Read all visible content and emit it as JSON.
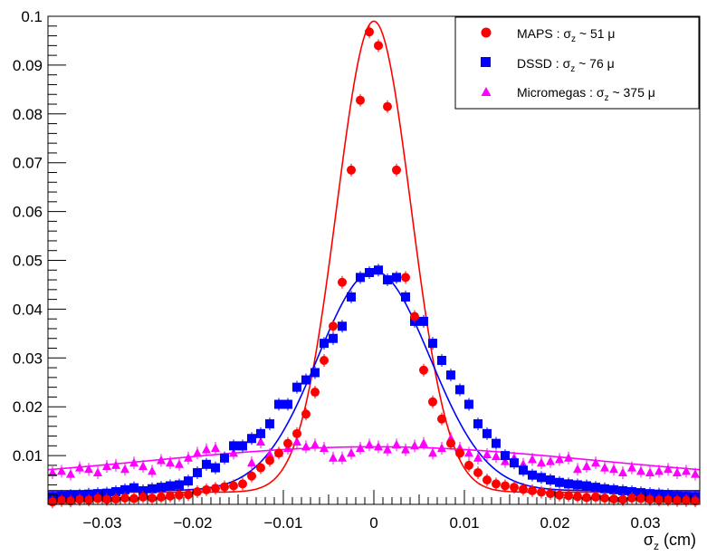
{
  "chart_data": {
    "type": "scatter",
    "title": "",
    "xlabel": "σz (cm)",
    "xlabel_main": "σ",
    "xlabel_sub": "z",
    "xlabel_unit": " (cm)",
    "ylabel": "",
    "xlim": [
      -0.036,
      0.036
    ],
    "ylim": [
      0,
      0.1
    ],
    "x_ticks": [
      -0.03,
      -0.02,
      -0.01,
      0,
      0.01,
      0.02,
      0.03
    ],
    "x_tick_labels": [
      "−0.03",
      "−0.02",
      "−0.01",
      "0",
      "0.01",
      "0.02",
      "0.03"
    ],
    "y_ticks": [
      0.01,
      0.02,
      0.03,
      0.04,
      0.05,
      0.06,
      0.07,
      0.08,
      0.09,
      0.1
    ],
    "y_tick_labels": [
      "0.01",
      "0.02",
      "0.03",
      "0.04",
      "0.05",
      "0.06",
      "0.07",
      "0.08",
      "0.09",
      "0.1"
    ],
    "grid": false,
    "legend_position": "top-right",
    "series": [
      {
        "name": "MAPS",
        "legend_text": "MAPS : σz ~ 51 μ",
        "legend_main": "MAPS : σ",
        "legend_sub": "z",
        "legend_tail": " ~ 51 μ",
        "marker": "circle",
        "color": "#ff0000",
        "fit": {
          "amp": 0.0965,
          "sigma": 0.0041,
          "offset": 0.0025
        },
        "x": [
          -0.0355,
          -0.0345,
          -0.0335,
          -0.0325,
          -0.0315,
          -0.0305,
          -0.0295,
          -0.0285,
          -0.0275,
          -0.0265,
          -0.0255,
          -0.0245,
          -0.0235,
          -0.0225,
          -0.0215,
          -0.0205,
          -0.0195,
          -0.0185,
          -0.0175,
          -0.0165,
          -0.0155,
          -0.0145,
          -0.0135,
          -0.0125,
          -0.0115,
          -0.0105,
          -0.0095,
          -0.0085,
          -0.0075,
          -0.0065,
          -0.0055,
          -0.0045,
          -0.0035,
          -0.0025,
          -0.0015,
          -0.0005,
          0.0005,
          0.0015,
          0.0025,
          0.0035,
          0.0045,
          0.0055,
          0.0065,
          0.0075,
          0.0085,
          0.0095,
          0.0105,
          0.0115,
          0.0125,
          0.0135,
          0.0145,
          0.0155,
          0.0165,
          0.0175,
          0.0185,
          0.0195,
          0.0205,
          0.0215,
          0.0225,
          0.0235,
          0.0245,
          0.0255,
          0.0265,
          0.0275,
          0.0285,
          0.0295,
          0.0305,
          0.0315,
          0.0325,
          0.0335,
          0.0345,
          0.0355
        ],
        "y": [
          0.0005,
          0.0008,
          0.0007,
          0.001,
          0.0009,
          0.0012,
          0.001,
          0.0011,
          0.0013,
          0.0012,
          0.0015,
          0.0013,
          0.0015,
          0.0017,
          0.0019,
          0.002,
          0.0026,
          0.003,
          0.0033,
          0.0036,
          0.0038,
          0.0042,
          0.0058,
          0.0075,
          0.009,
          0.0105,
          0.0125,
          0.0145,
          0.0185,
          0.023,
          0.0295,
          0.0365,
          0.0455,
          0.0685,
          0.0828,
          0.0968,
          0.094,
          0.0815,
          0.0685,
          0.0465,
          0.0385,
          0.0275,
          0.021,
          0.0175,
          0.0125,
          0.0105,
          0.008,
          0.0065,
          0.005,
          0.0042,
          0.0038,
          0.0035,
          0.0031,
          0.0028,
          0.0025,
          0.0022,
          0.0019,
          0.0018,
          0.0016,
          0.0014,
          0.0015,
          0.0013,
          0.0011,
          0.001,
          0.0013,
          0.0012,
          0.001,
          0.0009,
          0.0009,
          0.0008,
          0.0008,
          0.0007
        ]
      },
      {
        "name": "DSSD",
        "legend_text": "DSSD : σz ~ 76 μ",
        "legend_main": "DSSD : σ",
        "legend_sub": "z",
        "legend_tail": " ~ 76 μ",
        "marker": "square",
        "color": "#0000ff",
        "fit": {
          "amp": 0.045,
          "sigma": 0.0062,
          "offset": 0.0028
        },
        "x": [
          -0.0355,
          -0.0345,
          -0.0335,
          -0.0325,
          -0.0315,
          -0.0305,
          -0.0295,
          -0.0285,
          -0.0275,
          -0.0265,
          -0.0255,
          -0.0245,
          -0.0235,
          -0.0225,
          -0.0215,
          -0.0205,
          -0.0195,
          -0.0185,
          -0.0175,
          -0.0165,
          -0.0155,
          -0.0145,
          -0.0135,
          -0.0125,
          -0.0115,
          -0.0105,
          -0.0095,
          -0.0085,
          -0.0075,
          -0.0065,
          -0.0055,
          -0.0045,
          -0.0035,
          -0.0025,
          -0.0015,
          -0.0005,
          0.0005,
          0.0015,
          0.0025,
          0.0035,
          0.0045,
          0.0055,
          0.0065,
          0.0075,
          0.0085,
          0.0095,
          0.0105,
          0.0115,
          0.0125,
          0.0135,
          0.0145,
          0.0155,
          0.0165,
          0.0175,
          0.0185,
          0.0195,
          0.0205,
          0.0215,
          0.0225,
          0.0235,
          0.0245,
          0.0255,
          0.0265,
          0.0275,
          0.0285,
          0.0295,
          0.0305,
          0.0315,
          0.0325,
          0.0335,
          0.0345,
          0.0355
        ],
        "y": [
          0.0015,
          0.0017,
          0.0018,
          0.0019,
          0.0021,
          0.0022,
          0.0023,
          0.0026,
          0.003,
          0.0034,
          0.0028,
          0.0032,
          0.0035,
          0.0038,
          0.004,
          0.0048,
          0.0065,
          0.0082,
          0.0075,
          0.0095,
          0.012,
          0.012,
          0.0135,
          0.0145,
          0.0165,
          0.0205,
          0.0205,
          0.024,
          0.0255,
          0.027,
          0.033,
          0.034,
          0.0365,
          0.0425,
          0.0465,
          0.0475,
          0.048,
          0.046,
          0.0465,
          0.0425,
          0.0375,
          0.0375,
          0.033,
          0.0295,
          0.0265,
          0.0235,
          0.0205,
          0.0165,
          0.0145,
          0.0125,
          0.01,
          0.0085,
          0.007,
          0.006,
          0.0055,
          0.005,
          0.0045,
          0.0042,
          0.004,
          0.0038,
          0.0035,
          0.0032,
          0.003,
          0.0028,
          0.0026,
          0.0024,
          0.0022,
          0.0021,
          0.002,
          0.0017,
          0.0016,
          0.0015
        ]
      },
      {
        "name": "Micromegas",
        "legend_text": "Micromegas : σz ~ 375 μ",
        "legend_main": "Micromegas : σ",
        "legend_sub": "z",
        "legend_tail": " ~ 375 μ",
        "marker": "triangle",
        "color": "#ff00ff",
        "fit": {
          "amp": 0.0071,
          "sigma": 0.0245,
          "offset": 0.0047
        },
        "x": [
          -0.0355,
          -0.0345,
          -0.0335,
          -0.0325,
          -0.0315,
          -0.0305,
          -0.0295,
          -0.0285,
          -0.0275,
          -0.0265,
          -0.0255,
          -0.0245,
          -0.0235,
          -0.0225,
          -0.0215,
          -0.0205,
          -0.0195,
          -0.0185,
          -0.0175,
          -0.0165,
          -0.0155,
          -0.0145,
          -0.0135,
          -0.0125,
          -0.0115,
          -0.0105,
          -0.0095,
          -0.0085,
          -0.0075,
          -0.0065,
          -0.0055,
          -0.0045,
          -0.0035,
          -0.0025,
          -0.0015,
          -0.0005,
          0.0005,
          0.0015,
          0.0025,
          0.0035,
          0.0045,
          0.0055,
          0.0065,
          0.0075,
          0.0085,
          0.0095,
          0.0105,
          0.0115,
          0.0125,
          0.0135,
          0.0145,
          0.0155,
          0.0165,
          0.0175,
          0.0185,
          0.0195,
          0.0205,
          0.0215,
          0.0225,
          0.0235,
          0.0245,
          0.0255,
          0.0265,
          0.0275,
          0.0285,
          0.0295,
          0.0305,
          0.0315,
          0.0325,
          0.0335,
          0.0345,
          0.0355
        ],
        "y": [
          0.0065,
          0.0068,
          0.0062,
          0.0075,
          0.0072,
          0.0065,
          0.0078,
          0.008,
          0.0072,
          0.0085,
          0.0078,
          0.0068,
          0.009,
          0.0085,
          0.0082,
          0.0095,
          0.0105,
          0.0112,
          0.0115,
          0.0095,
          0.0105,
          0.0118,
          0.0085,
          0.0128,
          0.0102,
          0.0105,
          0.0115,
          0.0128,
          0.0118,
          0.0122,
          0.0115,
          0.0095,
          0.0095,
          0.0105,
          0.0115,
          0.0122,
          0.0118,
          0.0112,
          0.0122,
          0.0112,
          0.012,
          0.0125,
          0.0105,
          0.0115,
          0.0135,
          0.0115,
          0.0105,
          0.0095,
          0.0102,
          0.0098,
          0.0088,
          0.0095,
          0.0082,
          0.0092,
          0.0085,
          0.0088,
          0.0092,
          0.0095,
          0.0072,
          0.0078,
          0.0085,
          0.0075,
          0.0072,
          0.0065,
          0.0075,
          0.0068,
          0.0065,
          0.0068,
          0.0072,
          0.0065,
          0.0068,
          0.0062
        ]
      }
    ]
  }
}
